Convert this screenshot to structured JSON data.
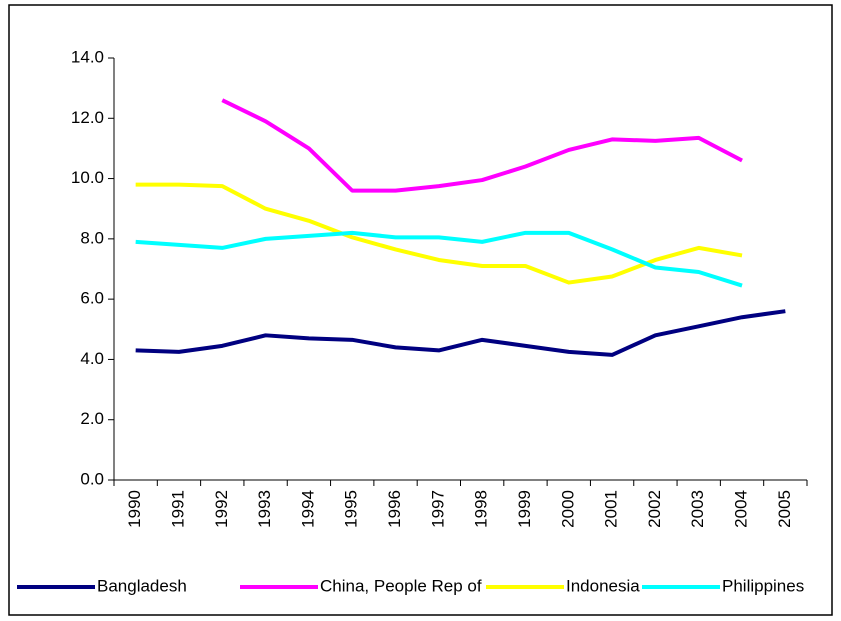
{
  "chart_data": {
    "type": "line",
    "categories": [
      "1990",
      "1991",
      "1992",
      "1993",
      "1994",
      "1995",
      "1996",
      "1997",
      "1998",
      "1999",
      "2000",
      "2001",
      "2002",
      "2003",
      "2004",
      "2005"
    ],
    "series": [
      {
        "name": "Bangladesh",
        "color": "#000080",
        "values": [
          4.3,
          4.25,
          4.45,
          4.8,
          4.7,
          4.65,
          4.4,
          4.3,
          4.65,
          4.45,
          4.25,
          4.15,
          4.8,
          5.1,
          5.4,
          5.6
        ]
      },
      {
        "name": "China, People Rep of",
        "color": "#ff00ff",
        "values": [
          null,
          null,
          12.6,
          11.9,
          11.0,
          9.6,
          9.6,
          9.75,
          9.95,
          10.4,
          10.95,
          11.3,
          11.25,
          11.35,
          10.6,
          null
        ]
      },
      {
        "name": "Indonesia",
        "color": "#ffff00",
        "values": [
          9.8,
          9.8,
          9.75,
          9.0,
          8.6,
          8.05,
          7.65,
          7.3,
          7.1,
          7.1,
          6.55,
          6.75,
          7.3,
          7.7,
          7.45,
          null
        ]
      },
      {
        "name": "Philippines",
        "color": "#00ffff",
        "values": [
          7.9,
          7.8,
          7.7,
          8.0,
          8.1,
          8.2,
          8.05,
          8.05,
          7.9,
          8.2,
          8.2,
          7.65,
          7.05,
          6.9,
          6.45,
          null
        ]
      }
    ],
    "ylim": [
      0,
      14
    ],
    "yticks": [
      {
        "value": 0,
        "label": "0.0"
      },
      {
        "value": 2,
        "label": "2.0"
      },
      {
        "value": 4,
        "label": "4.0"
      },
      {
        "value": 6,
        "label": "6.0"
      },
      {
        "value": 8,
        "label": "8.0"
      },
      {
        "value": 10,
        "label": "10.0"
      },
      {
        "value": 12,
        "label": "12.0"
      },
      {
        "value": 14,
        "label": "14.0"
      }
    ],
    "legend": "bottom"
  }
}
